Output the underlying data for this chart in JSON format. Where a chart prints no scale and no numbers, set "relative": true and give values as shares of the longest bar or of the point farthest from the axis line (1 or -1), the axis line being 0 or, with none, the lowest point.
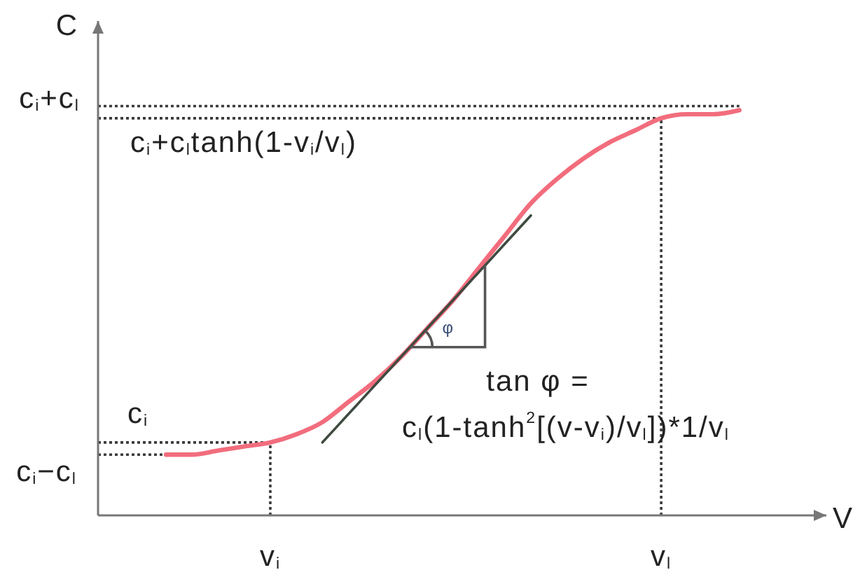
{
  "chart_data": {
    "type": "line",
    "relative": true,
    "xlabel": "V",
    "ylabel": "C",
    "marker": "none",
    "categories": [
      null,
      null,
      null,
      null,
      "v$_{i}$",
      null,
      null,
      null,
      null,
      null,
      null,
      null,
      null,
      null,
      null,
      null,
      null,
      null,
      null,
      "v$_{l}$",
      null,
      null,
      null
    ],
    "series": [
      {
        "color": "#f26d7d",
        "values": [
          0.15,
          0.15,
          0.16,
          0.17,
          0.18,
          0.2,
          0.23,
          0.28,
          0.33,
          0.39,
          0.46,
          0.53,
          0.61,
          0.69,
          0.77,
          0.83,
          0.88,
          0.92,
          0.95,
          0.98,
          0.99,
          0.99,
          1
        ]
      },
      {
        "color": "#3f4a40",
        "values": [
          null,
          null,
          null,
          null,
          null,
          null,
          0.18,
          0.25,
          0.32,
          0.39,
          0.46,
          0.53,
          0.6,
          0.67,
          0.74,
          null,
          null,
          null,
          null,
          null,
          null,
          null,
          null
        ]
      }
    ],
    "ref_lines": [
      {
        "axis": "y",
        "value": 1.01,
        "label": "c$_{i}$+c$_{l}$",
        "color": "#3a3a3a",
        "line_style": "dotted"
      },
      {
        "axis": "y",
        "value": 0.98,
        "label": "c$_{i}$+c$_{l}$tanh(1-v$_{i}$/v$_{l}$)",
        "color": "#3a3a3a",
        "line_style": "dotted"
      },
      {
        "axis": "y",
        "value": 0.18,
        "label": "c$_{i}$",
        "color": "#3a3a3a",
        "line_style": "dotted"
      },
      {
        "axis": "y",
        "value": 0.15,
        "label": "c$_{i}$−c$_{l}$",
        "color": "#3a3a3a",
        "line_style": "dotted"
      },
      {
        "axis": "x",
        "value": "v$_{i}$",
        "color": "#3a3a3a",
        "line_style": "dotted"
      },
      {
        "axis": "x",
        "value": "v$_{l}$",
        "color": "#3a3a3a",
        "line_style": "dotted"
      }
    ],
    "annotations": [
      "tan φ =",
      "c$_{l}$(1-tanh$^{2}$[(v-v$_{i}$)/v$_{l}$])*1/v$_{l}$",
      "φ"
    ]
  }
}
